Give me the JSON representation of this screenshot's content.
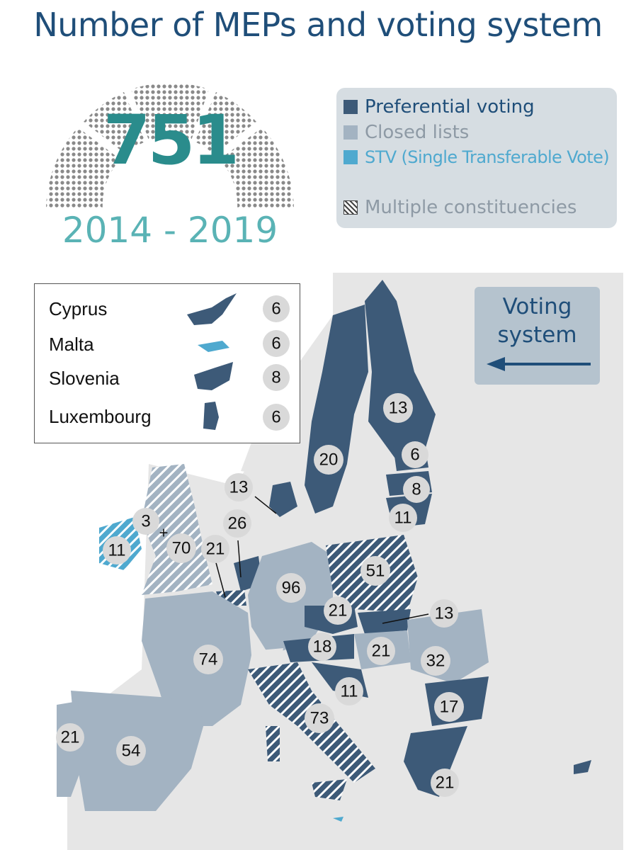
{
  "title": "Number of MEPs and voting system",
  "hemicycle": {
    "total": "751",
    "period": "2014 - 2019"
  },
  "legend": {
    "items": [
      {
        "label": "Preferential voting",
        "color": "#3d5a78"
      },
      {
        "label": "Closed lists",
        "color": "#a3b3c2"
      },
      {
        "label": "STV (Single Transferable Vote)",
        "color": "#4fa9cf"
      }
    ],
    "multiple_constituencies": "Multiple constituencies"
  },
  "small_states": [
    {
      "name": "Cyprus",
      "seats": "6"
    },
    {
      "name": "Malta",
      "seats": "6"
    },
    {
      "name": "Slovenia",
      "seats": "8"
    },
    {
      "name": "Luxembourg",
      "seats": "6"
    }
  ],
  "voting_system_box": {
    "line1": "Voting",
    "line2": "system"
  },
  "map_labels": {
    "finland": "13",
    "sweden": "20",
    "estonia": "6",
    "latvia": "8",
    "lithuania": "11",
    "denmark": "13",
    "netherlands": "26",
    "belgium": "21",
    "ireland": "11",
    "northern_ireland": "3",
    "plus": "+",
    "uk": "70",
    "germany": "96",
    "poland": "51",
    "czechia": "21",
    "slovakia": "13",
    "austria": "18",
    "hungary": "21",
    "romania": "32",
    "croatia": "11",
    "bulgaria": "17",
    "france": "74",
    "italy": "73",
    "portugal": "21",
    "spain": "54",
    "greece": "21"
  },
  "colors": {
    "preferential": "#3d5a78",
    "closed": "#a3b3c2",
    "stv": "#4fa9cf",
    "other": "#e6e6e6",
    "sea": "#ffffff",
    "badge": "#d9d9d9"
  }
}
